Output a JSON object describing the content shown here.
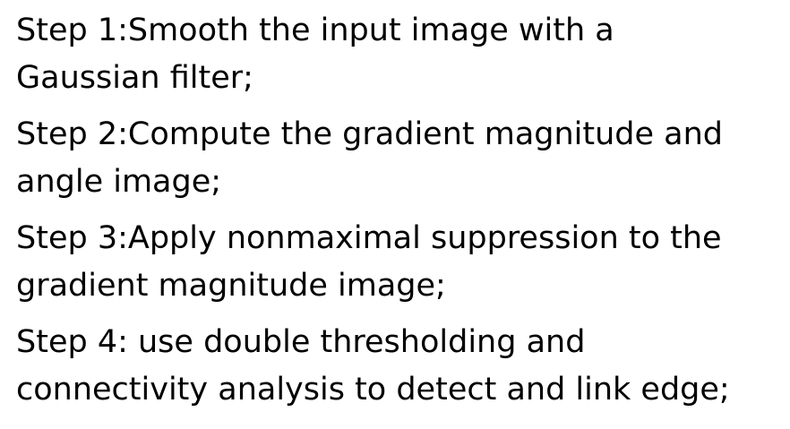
{
  "steps": [
    {
      "lines": [
        "Step 1:Smooth the input image with a",
        "Gaussian filter;"
      ]
    },
    {
      "lines": [
        "Step 2:Compute the gradient magnitude and",
        "angle image;"
      ]
    },
    {
      "lines": [
        "Step 3:Apply nonmaximal suppression to the",
        "gradient magnitude image;"
      ]
    },
    {
      "lines": [
        "Step 4: use double thresholding and",
        "connectivity analysis to detect and link edge;"
      ]
    }
  ]
}
